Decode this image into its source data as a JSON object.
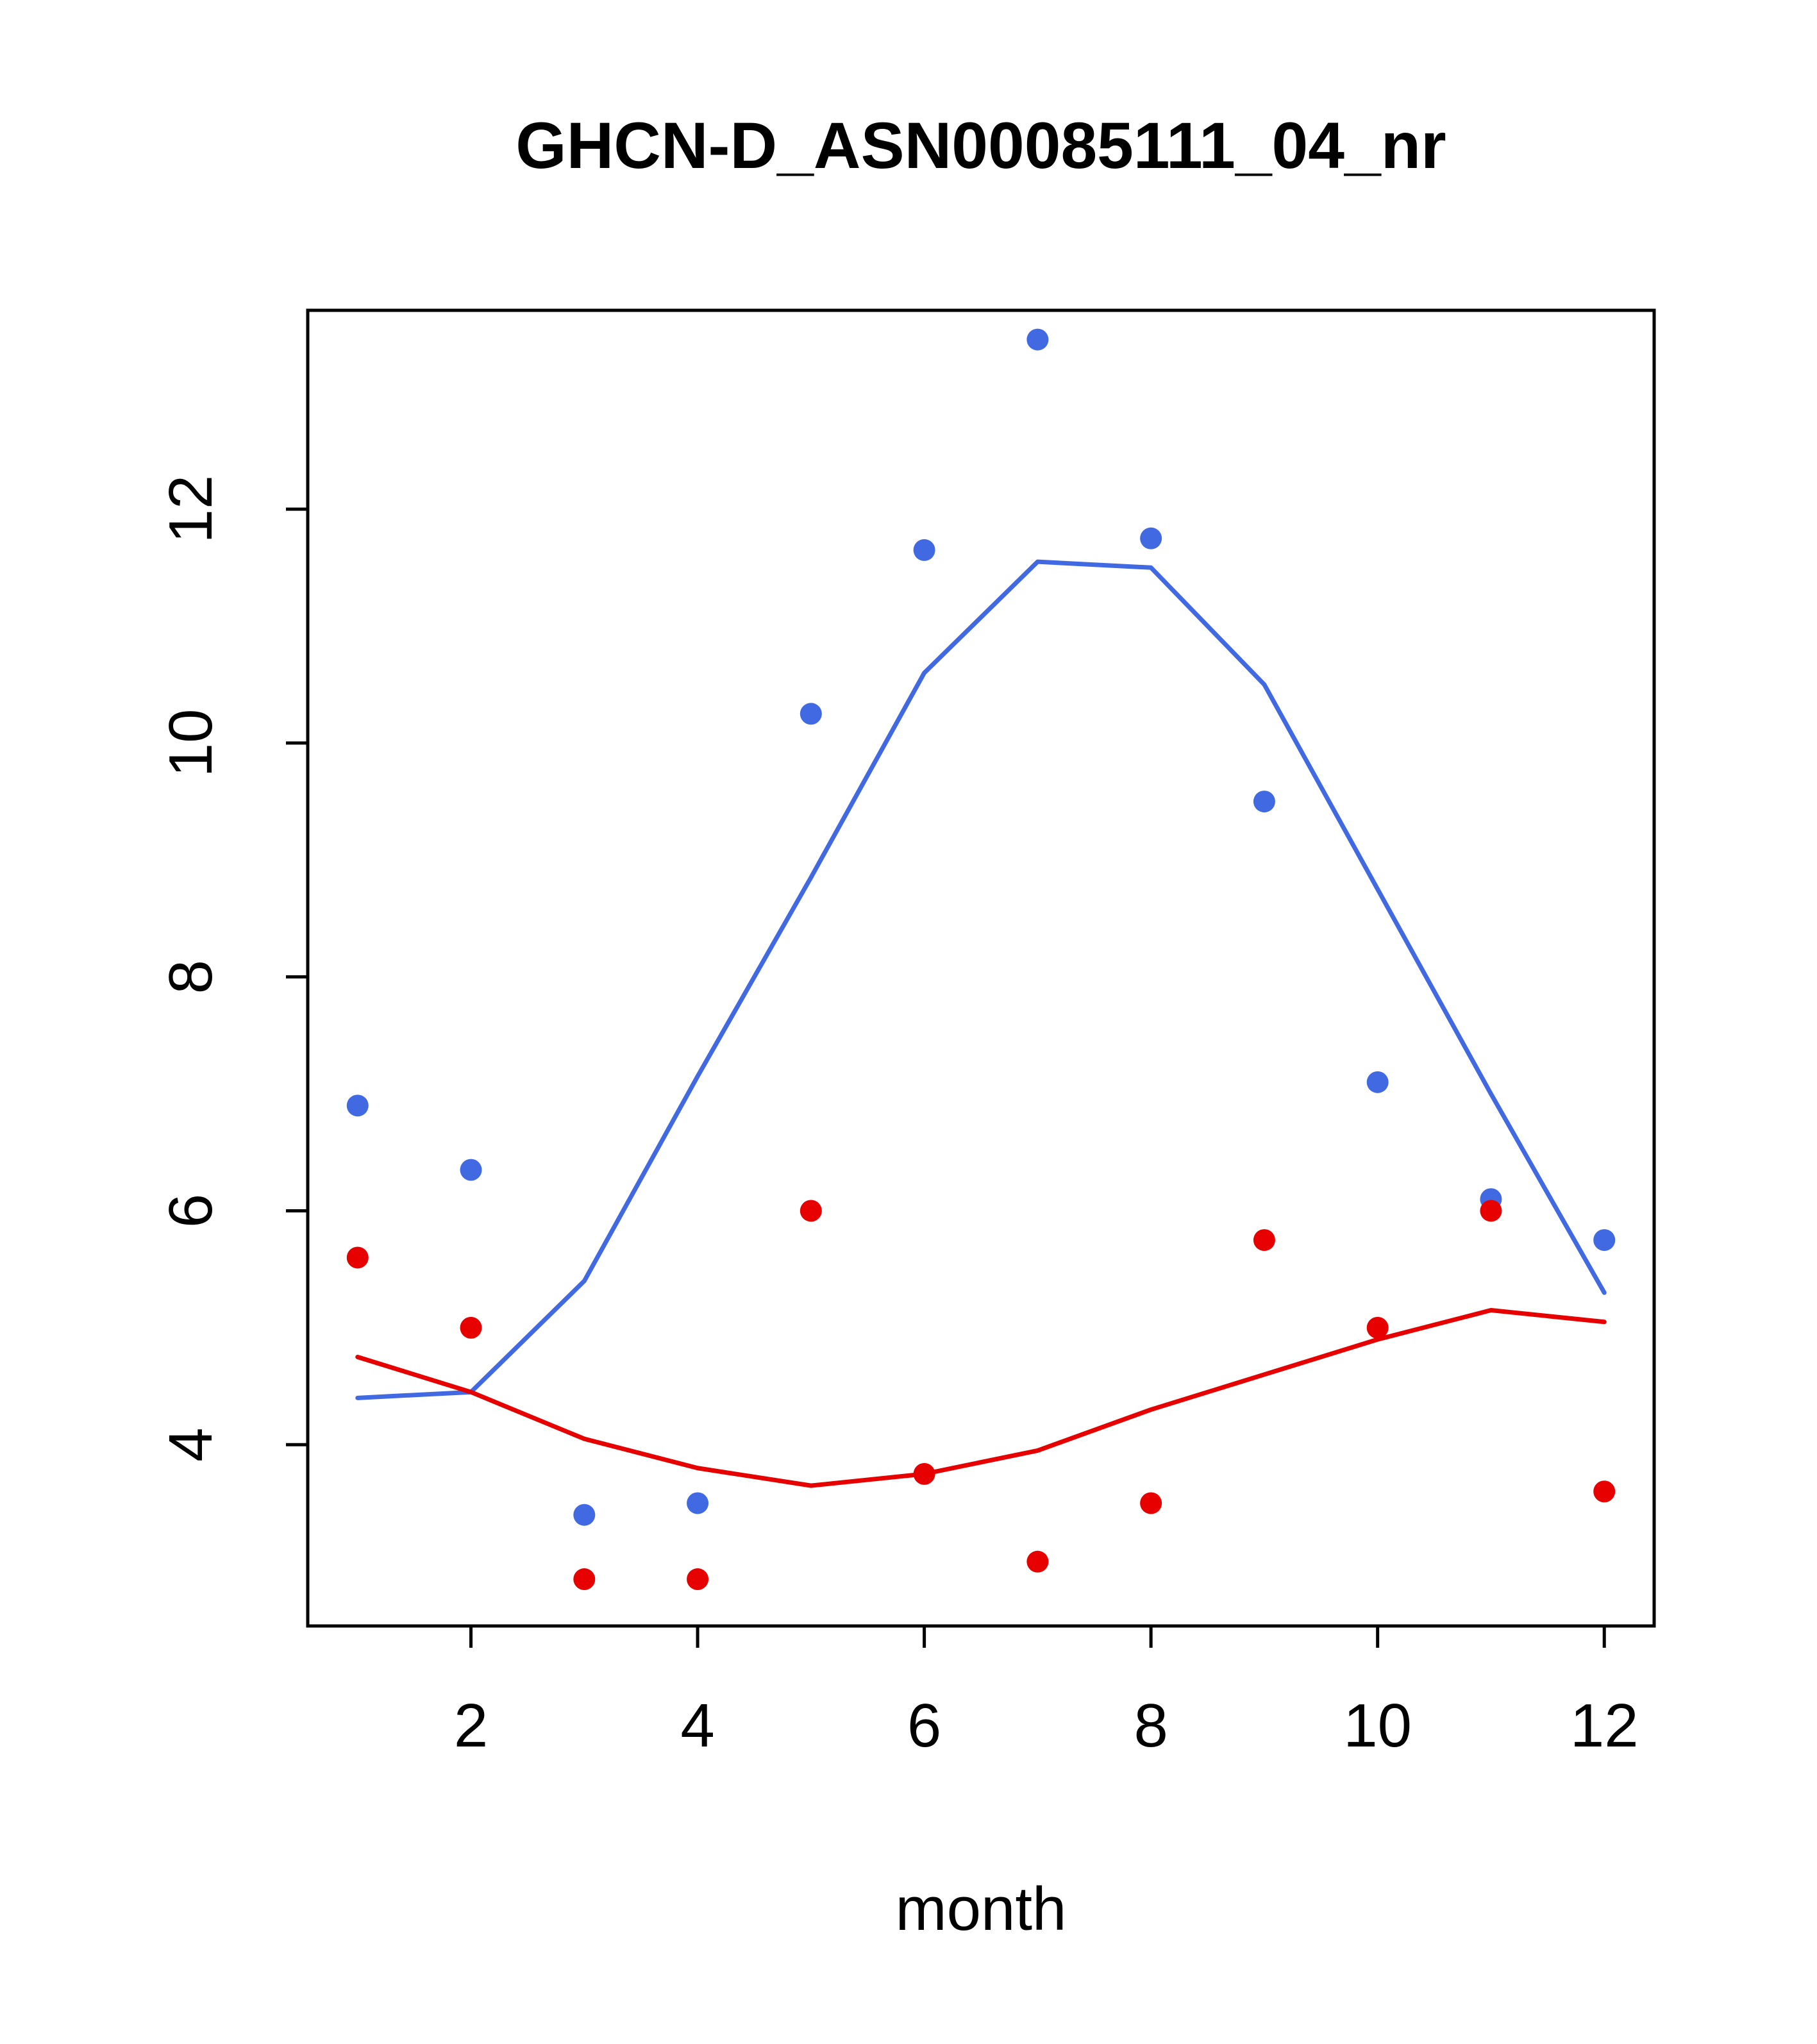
{
  "chart_data": {
    "type": "scatter",
    "title": "GHCN-D_ASN00085111_04_nr",
    "xlabel": "month",
    "ylabel": "",
    "x": [
      1,
      2,
      3,
      4,
      5,
      6,
      7,
      8,
      9,
      10,
      11,
      12
    ],
    "xlim": [
      0.56,
      12.44
    ],
    "ylim": [
      2.45,
      13.7
    ],
    "x_ticks": [
      2,
      4,
      6,
      8,
      10,
      12
    ],
    "y_ticks": [
      4,
      6,
      8,
      10,
      12
    ],
    "grid": false,
    "legend": "none",
    "colors": {
      "blue": "#4169E1",
      "red": "#E60000",
      "axis": "#000000",
      "background": "#FFFFFF"
    },
    "series": [
      {
        "name": "blue-smooth-line",
        "kind": "line",
        "color": "#4169E1",
        "values": [
          4.4,
          4.45,
          5.4,
          7.15,
          8.85,
          10.6,
          11.55,
          11.5,
          10.5,
          8.75,
          7.0,
          5.3
        ]
      },
      {
        "name": "red-smooth-line",
        "kind": "line",
        "color": "#E60000",
        "values": [
          4.75,
          4.45,
          4.05,
          3.8,
          3.65,
          3.75,
          3.95,
          4.3,
          4.6,
          4.9,
          5.15,
          5.05
        ]
      },
      {
        "name": "blue-points",
        "kind": "points",
        "color": "#4169E1",
        "values": [
          6.9,
          6.35,
          3.4,
          3.5,
          10.25,
          11.65,
          13.45,
          11.75,
          9.5,
          7.1,
          6.1,
          5.75
        ]
      },
      {
        "name": "red-points",
        "kind": "points",
        "color": "#E60000",
        "values": [
          5.6,
          5.0,
          2.85,
          2.85,
          6.0,
          3.75,
          3.0,
          3.5,
          5.75,
          5.0,
          6.0,
          3.6
        ]
      }
    ]
  }
}
